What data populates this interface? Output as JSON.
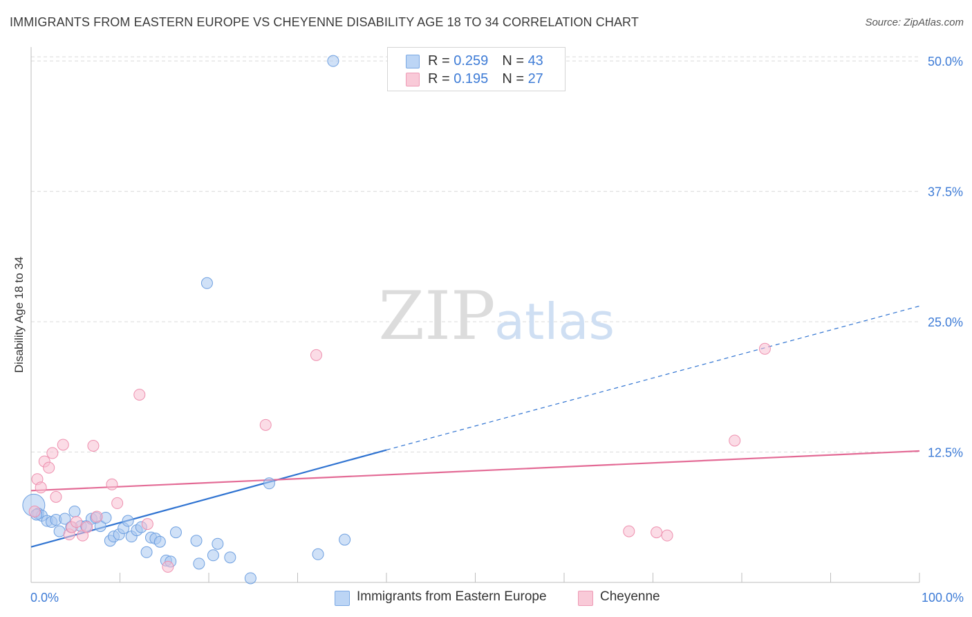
{
  "title": "IMMIGRANTS FROM EASTERN EUROPE VS CHEYENNE DISABILITY AGE 18 TO 34 CORRELATION CHART",
  "source": "Source: ZipAtlas.com",
  "watermark": {
    "zip": "ZIP",
    "atlas": "atlas"
  },
  "legend": {
    "rows": [
      {
        "r_label": "R = ",
        "r_value": "0.259",
        "n_label": "N = ",
        "n_value": "43"
      },
      {
        "r_label": "R = ",
        "r_value": "0.195",
        "n_label": "N = ",
        "n_value": "27"
      }
    ]
  },
  "chart_data": {
    "type": "scatter",
    "title": "IMMIGRANTS FROM EASTERN EUROPE VS CHEYENNE DISABILITY AGE 18 TO 34 CORRELATION CHART",
    "xlabel": "",
    "ylabel": "Disability Age 18 to 34",
    "xlim": [
      0,
      100
    ],
    "ylim": [
      0,
      52
    ],
    "x_tick_labels": [
      "0.0%",
      "100.0%"
    ],
    "y_ticks": [
      12.5,
      25.0,
      37.5,
      50.0
    ],
    "y_tick_labels": [
      "12.5%",
      "25.0%",
      "37.5%",
      "50.0%"
    ],
    "grid": true,
    "legend_position": "top-center",
    "series": [
      {
        "name": "Immigrants from Eastern Europe",
        "color": "#a9c8f0",
        "stroke": "#6d9fe0",
        "trend_color": "#2f73d1",
        "trend": {
          "x0": 0,
          "y0": 3.4,
          "x1": 40,
          "y1": 12.7,
          "extend_to_x": 100,
          "extend_to_y": 26.5
        },
        "points": [
          [
            0.3,
            7.4
          ],
          [
            0.8,
            6.6
          ],
          [
            1.2,
            6.4
          ],
          [
            1.8,
            5.9
          ],
          [
            2.3,
            5.8
          ],
          [
            2.8,
            6.0
          ],
          [
            3.2,
            4.9
          ],
          [
            3.8,
            6.1
          ],
          [
            4.5,
            5.3
          ],
          [
            4.9,
            6.8
          ],
          [
            5.6,
            5.4
          ],
          [
            6.2,
            5.4
          ],
          [
            6.8,
            6.1
          ],
          [
            7.3,
            6.2
          ],
          [
            7.8,
            5.4
          ],
          [
            8.4,
            6.2
          ],
          [
            8.9,
            4.0
          ],
          [
            9.3,
            4.4
          ],
          [
            9.9,
            4.6
          ],
          [
            10.4,
            5.2
          ],
          [
            10.9,
            5.9
          ],
          [
            11.3,
            4.4
          ],
          [
            11.9,
            5.0
          ],
          [
            12.4,
            5.3
          ],
          [
            13.0,
            2.9
          ],
          [
            13.5,
            4.3
          ],
          [
            14.0,
            4.2
          ],
          [
            14.5,
            3.9
          ],
          [
            15.2,
            2.1
          ],
          [
            15.7,
            2.0
          ],
          [
            16.3,
            4.8
          ],
          [
            18.6,
            4.0
          ],
          [
            18.9,
            1.8
          ],
          [
            19.8,
            28.7
          ],
          [
            20.5,
            2.6
          ],
          [
            21.0,
            3.7
          ],
          [
            22.4,
            2.4
          ],
          [
            24.7,
            0.4
          ],
          [
            26.8,
            9.5
          ],
          [
            32.3,
            2.7
          ],
          [
            34.0,
            50.0
          ],
          [
            35.3,
            4.1
          ],
          [
            0.6,
            6.5
          ]
        ]
      },
      {
        "name": "Cheyenne",
        "color": "#f8c0d1",
        "stroke": "#ee8fae",
        "trend_color": "#e36a95",
        "trend": {
          "x0": 0,
          "y0": 8.8,
          "x1": 100,
          "y1": 12.6
        },
        "points": [
          [
            0.4,
            6.8
          ],
          [
            0.7,
            9.9
          ],
          [
            1.1,
            9.1
          ],
          [
            1.5,
            11.6
          ],
          [
            2.0,
            11.0
          ],
          [
            2.4,
            12.4
          ],
          [
            2.8,
            8.2
          ],
          [
            3.6,
            13.2
          ],
          [
            4.3,
            4.6
          ],
          [
            4.6,
            5.3
          ],
          [
            5.1,
            5.8
          ],
          [
            5.8,
            4.5
          ],
          [
            6.3,
            5.3
          ],
          [
            7.0,
            13.1
          ],
          [
            7.4,
            6.3
          ],
          [
            9.1,
            9.4
          ],
          [
            9.7,
            7.6
          ],
          [
            12.2,
            18.0
          ],
          [
            13.1,
            5.6
          ],
          [
            15.4,
            1.5
          ],
          [
            26.4,
            15.1
          ],
          [
            32.1,
            21.8
          ],
          [
            67.3,
            4.9
          ],
          [
            70.4,
            4.8
          ],
          [
            71.6,
            4.5
          ],
          [
            79.2,
            13.6
          ],
          [
            82.6,
            22.4
          ]
        ]
      }
    ]
  }
}
